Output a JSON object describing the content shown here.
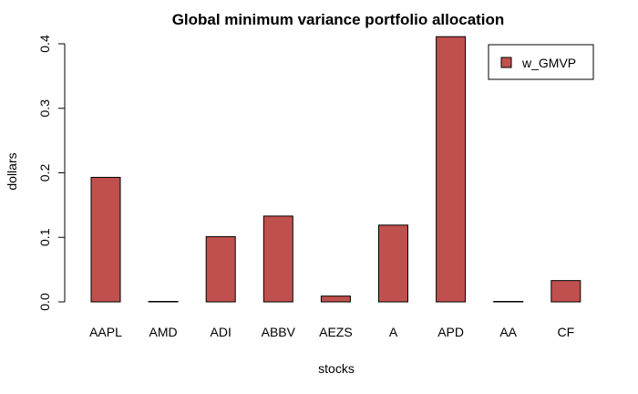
{
  "chart_data": {
    "type": "bar",
    "title": "Global minimum variance portfolio allocation",
    "xlabel": "stocks",
    "ylabel": "dollars",
    "categories": [
      "AAPL",
      "AMD",
      "ADI",
      "ABBV",
      "AEZS",
      "A",
      "APD",
      "AA",
      "CF"
    ],
    "series": [
      {
        "name": "w_GMVP",
        "values": [
          0.193,
          0.0,
          0.101,
          0.133,
          0.009,
          0.119,
          0.411,
          0.0,
          0.033
        ]
      }
    ],
    "ylim": [
      0,
      0.4
    ],
    "yticks": [
      "0.0",
      "0.1",
      "0.2",
      "0.3",
      "0.4"
    ],
    "grid": false,
    "legend_position": "top-right",
    "colors": {
      "bar": "#c0504d",
      "stroke": "#000000"
    }
  }
}
